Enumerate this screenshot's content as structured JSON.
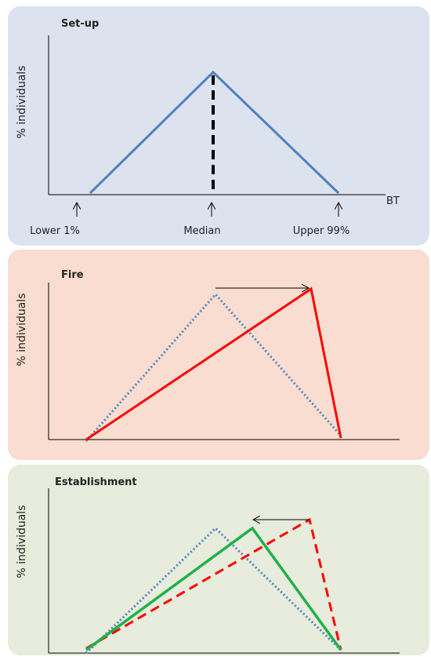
{
  "panels": [
    {
      "title": "Set-up",
      "y_label": "% individuals",
      "x_label": "BT",
      "markers": [
        "Lower 1%",
        "Median",
        "Upper 99%"
      ]
    },
    {
      "title": "Fire",
      "y_label": "% individuals"
    },
    {
      "title": "Establishment",
      "y_label": "% individuals"
    }
  ]
}
